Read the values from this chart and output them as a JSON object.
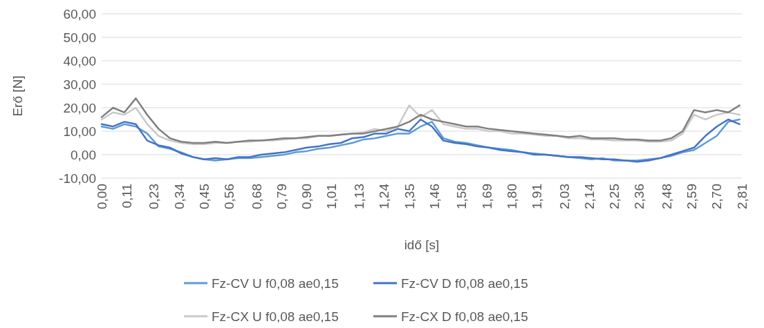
{
  "chart_data": {
    "type": "line",
    "xlabel": "idő [s]",
    "ylabel": "Erő [N]",
    "x": [
      0,
      0.05,
      0.1,
      0.15,
      0.2,
      0.25,
      0.3,
      0.35,
      0.4,
      0.45,
      0.5,
      0.55,
      0.6,
      0.65,
      0.7,
      0.75,
      0.8,
      0.85,
      0.9,
      0.95,
      1.0,
      1.05,
      1.1,
      1.15,
      1.2,
      1.25,
      1.3,
      1.35,
      1.4,
      1.45,
      1.5,
      1.55,
      1.6,
      1.65,
      1.7,
      1.75,
      1.8,
      1.85,
      1.9,
      1.95,
      2.0,
      2.05,
      2.1,
      2.15,
      2.2,
      2.25,
      2.3,
      2.35,
      2.4,
      2.45,
      2.5,
      2.55,
      2.6,
      2.65,
      2.7,
      2.75,
      2.8
    ],
    "xlim": [
      0,
      2.81
    ],
    "xticks": [
      {
        "value": 0,
        "label": "0,00"
      },
      {
        "value": 0.11,
        "label": "0,11"
      },
      {
        "value": 0.23,
        "label": "0,23"
      },
      {
        "value": 0.34,
        "label": "0,34"
      },
      {
        "value": 0.45,
        "label": "0,45"
      },
      {
        "value": 0.56,
        "label": "0,56"
      },
      {
        "value": 0.68,
        "label": "0,68"
      },
      {
        "value": 0.79,
        "label": "0,79"
      },
      {
        "value": 0.9,
        "label": "0,90"
      },
      {
        "value": 1.01,
        "label": "1,01"
      },
      {
        "value": 1.13,
        "label": "1,13"
      },
      {
        "value": 1.24,
        "label": "1,24"
      },
      {
        "value": 1.35,
        "label": "1,35"
      },
      {
        "value": 1.46,
        "label": "1,46"
      },
      {
        "value": 1.58,
        "label": "1,58"
      },
      {
        "value": 1.69,
        "label": "1,69"
      },
      {
        "value": 1.8,
        "label": "1,80"
      },
      {
        "value": 1.91,
        "label": "1,91"
      },
      {
        "value": 2.03,
        "label": "2,03"
      },
      {
        "value": 2.14,
        "label": "2,14"
      },
      {
        "value": 2.25,
        "label": "2,25"
      },
      {
        "value": 2.36,
        "label": "2,36"
      },
      {
        "value": 2.48,
        "label": "2,48"
      },
      {
        "value": 2.59,
        "label": "2,59"
      },
      {
        "value": 2.7,
        "label": "2,70"
      },
      {
        "value": 2.81,
        "label": "2,81"
      }
    ],
    "ylim": [
      -10,
      60
    ],
    "yticks": [
      {
        "value": -10,
        "label": "-10,00"
      },
      {
        "value": 0,
        "label": "0,00"
      },
      {
        "value": 10,
        "label": "10,00"
      },
      {
        "value": 20,
        "label": "20,00"
      },
      {
        "value": 30,
        "label": "30,00"
      },
      {
        "value": 40,
        "label": "40,00"
      },
      {
        "value": 50,
        "label": "50,00"
      },
      {
        "value": 60,
        "label": "60,00"
      }
    ],
    "grid": "y",
    "legend": "bottom",
    "marker": "none",
    "line_style": "solid",
    "series": [
      {
        "name": "Fz-CV U f0,08 ae0,15",
        "color": "#5b9bd5",
        "values": [
          12,
          11,
          13,
          12,
          9,
          3.5,
          2.5,
          1,
          -1,
          -2,
          -2.5,
          -2,
          -1.5,
          -1.5,
          -1,
          -0.5,
          0,
          1,
          1.5,
          2.5,
          3,
          4,
          5,
          6.5,
          7,
          8,
          9,
          9,
          12,
          14,
          7,
          5.5,
          5,
          4,
          3,
          2.5,
          2,
          1,
          0.5,
          0,
          -0.5,
          -1,
          -1.5,
          -2,
          -1.5,
          -2.5,
          -2.5,
          -2.5,
          -2,
          -1.5,
          -0.5,
          1,
          2,
          5,
          8,
          14,
          15
        ]
      },
      {
        "name": "Fz-CV D f0,08 ae0,15",
        "color": "#4472c4",
        "values": [
          13,
          12,
          14,
          13,
          6,
          4,
          3,
          0.5,
          -1,
          -2,
          -1.5,
          -2,
          -1,
          -1,
          0,
          0.5,
          1,
          2,
          3,
          3.5,
          4.5,
          5,
          7,
          7.5,
          9,
          9,
          11,
          10,
          15,
          12,
          6,
          5,
          4.5,
          3.5,
          3,
          2,
          1.5,
          1,
          0,
          0,
          -0.5,
          -1,
          -1,
          -1.5,
          -2,
          -2,
          -2.5,
          -3,
          -2.5,
          -1.5,
          0,
          1.5,
          3,
          8,
          12,
          15,
          13
        ]
      },
      {
        "name": "Fz-CX U f0,08 ae0,15",
        "color": "#c9c9c9",
        "values": [
          15,
          18,
          17,
          20,
          13,
          8,
          6,
          5,
          4.5,
          4.5,
          5,
          5,
          5.5,
          5.5,
          6,
          6,
          6.5,
          7,
          7,
          8,
          8,
          8.5,
          9,
          9.5,
          11,
          10,
          12,
          21,
          16,
          19,
          13,
          12,
          11,
          11,
          10,
          10,
          9,
          9,
          8.5,
          8,
          8,
          7,
          7,
          6.5,
          6.5,
          6,
          6,
          6,
          5.5,
          5.5,
          6,
          9,
          17,
          15,
          17,
          18,
          17
        ]
      },
      {
        "name": "Fz-CX D f0,08 ae0,15",
        "color": "#7f7f7f",
        "values": [
          16,
          20,
          18,
          24,
          17,
          11,
          7,
          5.5,
          5,
          5,
          5.5,
          5,
          5.5,
          6,
          6,
          6.5,
          7,
          7,
          7.5,
          8,
          8,
          8.5,
          9,
          9,
          10,
          11,
          12,
          14,
          17,
          15,
          14,
          13,
          12,
          12,
          11,
          10.5,
          10,
          9.5,
          9,
          8.5,
          8,
          7.5,
          8,
          7,
          7,
          7,
          6.5,
          6.5,
          6,
          6,
          7,
          10,
          19,
          18,
          19,
          18,
          21
        ]
      }
    ]
  }
}
